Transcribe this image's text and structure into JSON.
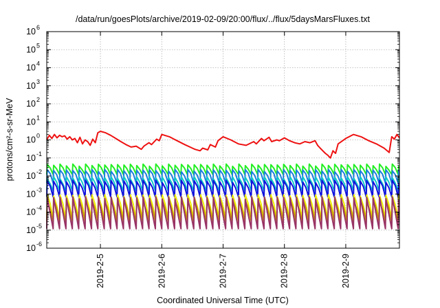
{
  "chart_data": {
    "type": "line",
    "title": "/data/run/goesPlots/archive/2019-02-09/20:00/flux/../flux/5daysMarsFluxes.txt",
    "xlabel": "Coordinated Universal Time (UTC)",
    "ylabel": "protons/cm²-s-sr-MeV",
    "yscale": "log",
    "ylim": [
      1e-06,
      1000000.0
    ],
    "xlim": [
      "2019-02-04 03:00",
      "2019-02-09 21:00"
    ],
    "grid": true,
    "legend": "none",
    "y_ticks": [
      {
        "label": "10",
        "exp": "-6",
        "value": 1e-06
      },
      {
        "label": "10",
        "exp": "-5",
        "value": 1e-05
      },
      {
        "label": "10",
        "exp": "-4",
        "value": 0.0001
      },
      {
        "label": "10",
        "exp": "-3",
        "value": 0.001
      },
      {
        "label": "10",
        "exp": "-2",
        "value": 0.01
      },
      {
        "label": "10",
        "exp": "-1",
        "value": 0.1
      },
      {
        "label": "10",
        "exp": "0",
        "value": 1
      },
      {
        "label": "10",
        "exp": "1",
        "value": 10
      },
      {
        "label": "10",
        "exp": "2",
        "value": 100
      },
      {
        "label": "10",
        "exp": "3",
        "value": 1000
      },
      {
        "label": "10",
        "exp": "4",
        "value": 10000
      },
      {
        "label": "10",
        "exp": "5",
        "value": 100000
      },
      {
        "label": "10",
        "exp": "6",
        "value": 1000000
      }
    ],
    "x_ticks": [
      {
        "label": "2019-2-5",
        "value": "2019-02-05 00:00"
      },
      {
        "label": "2019-2-6",
        "value": "2019-02-06 00:00"
      },
      {
        "label": "2019-2-7",
        "value": "2019-02-07 00:00"
      },
      {
        "label": "2019-2-8",
        "value": "2019-02-08 00:00"
      },
      {
        "label": "2019-2-9",
        "value": "2019-02-09 00:00"
      }
    ],
    "series": [
      {
        "color": "#ee1111",
        "x": [
          "2019-02-04 03:00",
          "2019-02-04 04:00",
          "2019-02-04 05:00",
          "2019-02-04 06:00",
          "2019-02-04 07:00",
          "2019-02-04 08:00",
          "2019-02-04 09:00",
          "2019-02-04 10:00",
          "2019-02-04 11:00",
          "2019-02-04 12:00",
          "2019-02-04 13:00",
          "2019-02-04 14:00",
          "2019-02-04 15:00",
          "2019-02-04 16:00",
          "2019-02-04 17:00",
          "2019-02-04 18:00",
          "2019-02-04 19:00",
          "2019-02-04 20:00",
          "2019-02-04 21:00",
          "2019-02-04 22:00",
          "2019-02-04 23:00",
          "2019-02-05 00:00",
          "2019-02-05 02:00",
          "2019-02-05 04:00",
          "2019-02-05 06:00",
          "2019-02-05 08:00",
          "2019-02-05 10:00",
          "2019-02-05 12:00",
          "2019-02-05 14:00",
          "2019-02-05 16:00",
          "2019-02-05 17:00",
          "2019-02-05 19:00",
          "2019-02-05 20:00",
          "2019-02-05 22:00",
          "2019-02-05 23:00",
          "2019-02-06 00:00",
          "2019-02-06 03:00",
          "2019-02-06 06:00",
          "2019-02-06 09:00",
          "2019-02-06 12:00",
          "2019-02-06 13:00",
          "2019-02-06 15:00",
          "2019-02-06 16:00",
          "2019-02-06 18:00",
          "2019-02-06 19:00",
          "2019-02-06 21:00",
          "2019-02-06 22:00",
          "2019-02-07 00:00",
          "2019-02-07 03:00",
          "2019-02-07 06:00",
          "2019-02-07 09:00",
          "2019-02-07 12:00",
          "2019-02-07 13:00",
          "2019-02-07 15:00",
          "2019-02-07 16:00",
          "2019-02-07 18:00",
          "2019-02-07 19:00",
          "2019-02-07 21:00",
          "2019-02-07 22:00",
          "2019-02-08 00:00",
          "2019-02-08 02:00",
          "2019-02-08 04:00",
          "2019-02-08 06:00",
          "2019-02-08 08:00",
          "2019-02-08 10:00",
          "2019-02-08 12:00",
          "2019-02-08 13:00",
          "2019-02-08 14:00",
          "2019-02-08 15:00",
          "2019-02-08 16:00",
          "2019-02-08 17:00",
          "2019-02-08 18:00",
          "2019-02-08 19:00",
          "2019-02-08 20:00",
          "2019-02-08 21:00",
          "2019-02-09 00:00",
          "2019-02-09 03:00",
          "2019-02-09 06:00",
          "2019-02-09 09:00",
          "2019-02-09 12:00",
          "2019-02-09 15:00",
          "2019-02-09 17:00",
          "2019-02-09 18:00",
          "2019-02-09 19:00",
          "2019-02-09 20:00",
          "2019-02-09 21:00"
        ],
        "y": [
          1.0,
          1.8,
          1.2,
          2.0,
          1.3,
          1.8,
          1.5,
          1.7,
          1.1,
          1.5,
          1.0,
          1.2,
          0.7,
          1.4,
          0.6,
          1.0,
          0.8,
          0.5,
          1.1,
          0.7,
          2.5,
          3.0,
          2.5,
          1.8,
          1.2,
          0.8,
          0.55,
          0.4,
          0.45,
          0.3,
          0.45,
          0.7,
          0.55,
          1.1,
          0.9,
          2.0,
          1.5,
          0.9,
          0.55,
          0.35,
          0.3,
          0.25,
          0.35,
          0.28,
          0.55,
          0.4,
          0.9,
          1.5,
          1.0,
          0.6,
          0.5,
          0.8,
          0.6,
          1.2,
          0.9,
          1.4,
          0.8,
          1.0,
          0.9,
          1.3,
          0.9,
          0.7,
          0.6,
          0.8,
          0.7,
          0.9,
          0.5,
          0.35,
          0.25,
          0.18,
          0.14,
          0.1,
          0.25,
          0.18,
          0.6,
          1.2,
          2.0,
          1.5,
          0.9,
          0.6,
          0.35,
          0.2,
          1.5,
          1.1,
          2.0,
          1.3
        ]
      },
      {
        "color": "#22ee22",
        "base": 0.025,
        "peak": 0.04,
        "trough": 0.012
      },
      {
        "color": "#1a7fdd",
        "base": 0.012,
        "peak": 0.02,
        "trough": 0.004
      },
      {
        "color": "#10c8c8",
        "base": 0.004,
        "peak": 0.008,
        "trough": 0.0015
      },
      {
        "color": "#1010dd",
        "base": 0.0025,
        "peak": 0.005,
        "trough": 0.0007
      },
      {
        "color": "#eeee00",
        "base": 0.00025,
        "peak": 0.0008,
        "trough": 4e-05
      },
      {
        "color": "#c8a000",
        "base": 0.00015,
        "peak": 0.0004,
        "trough": 3e-05
      },
      {
        "color": "#993366",
        "base": 8e-05,
        "peak": 0.0006,
        "trough": 1.2e-05
      }
    ]
  }
}
